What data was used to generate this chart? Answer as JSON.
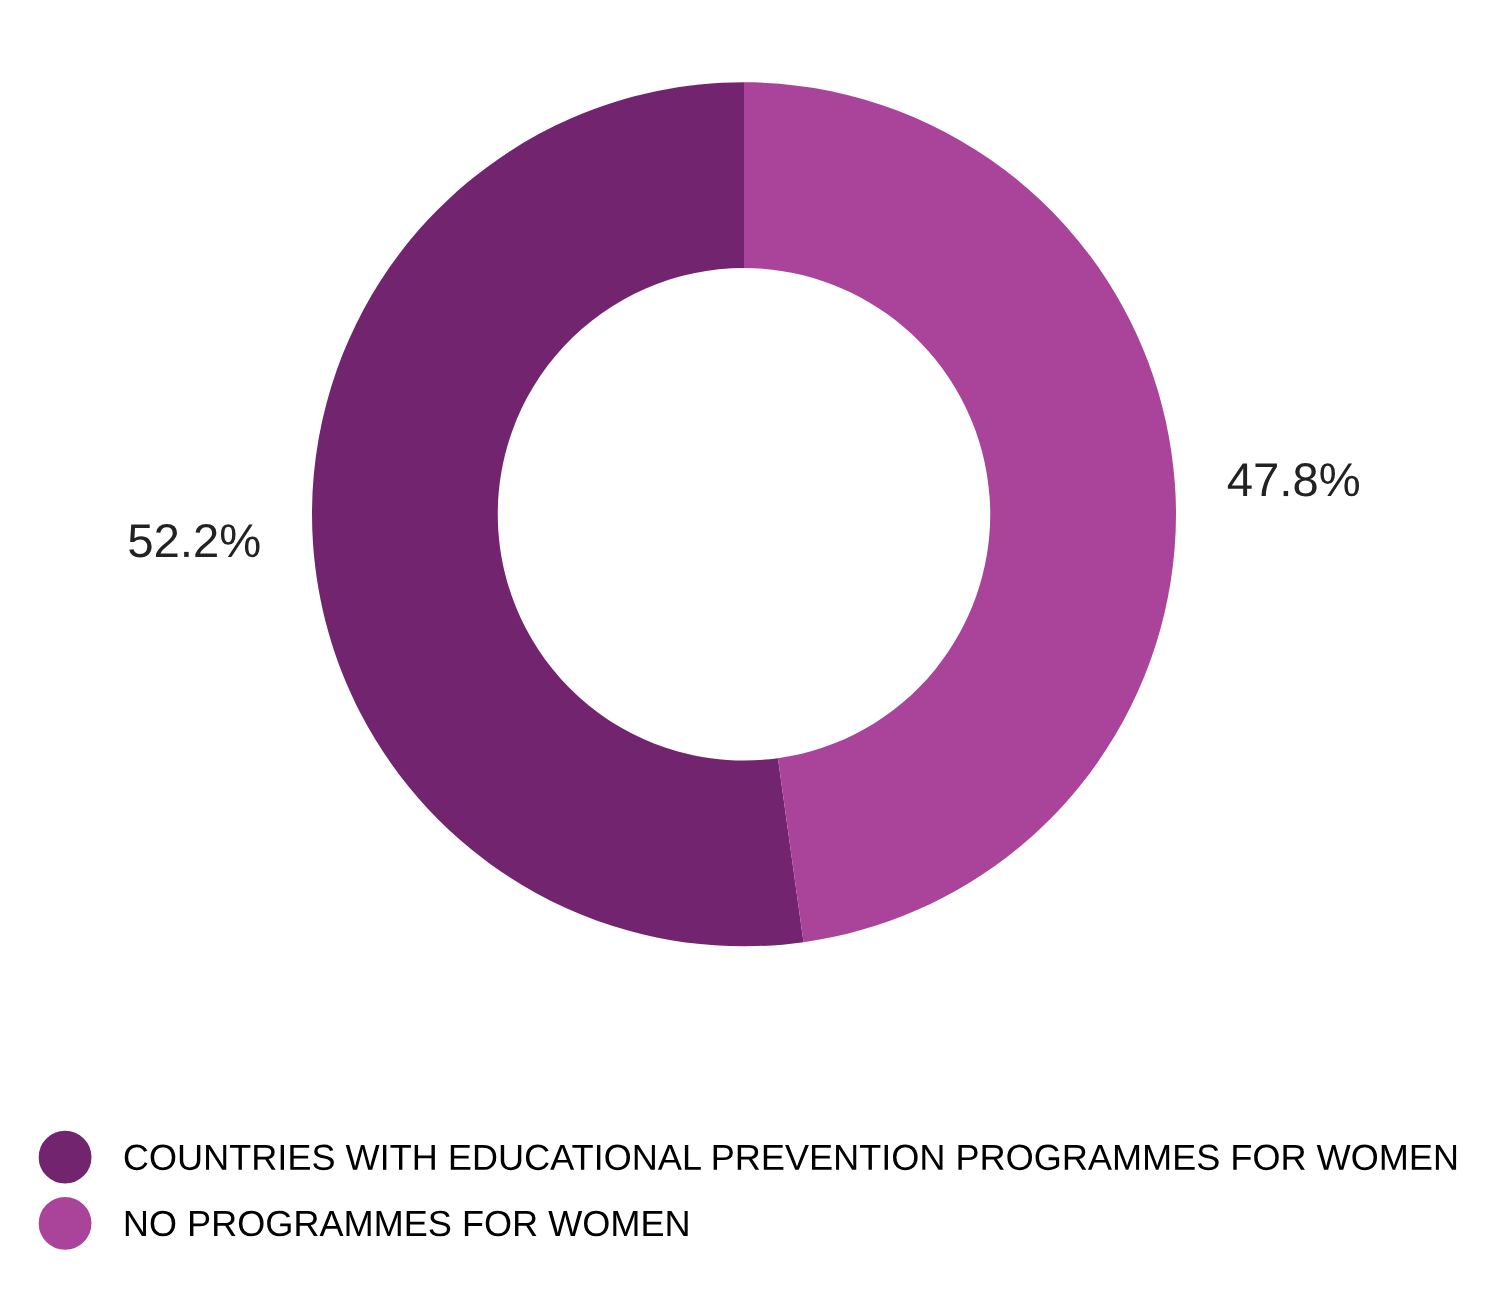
{
  "chart_data": {
    "type": "donut",
    "categories": [
      "COUNTRIES WITH EDUCATIONAL PREVENTION PROGRAMMES FOR WOMEN",
      "NO PROGRAMMES FOR WOMEN"
    ],
    "values": [
      52.2,
      47.8
    ],
    "colors": [
      "#72246f",
      "#a9449a"
    ],
    "value_labels": [
      "52.2%",
      "47.8%"
    ],
    "legend": "bottom"
  }
}
